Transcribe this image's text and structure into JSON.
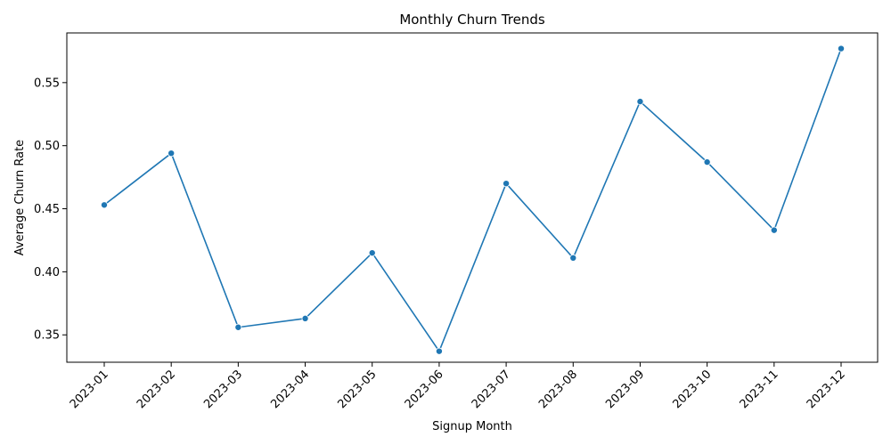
{
  "chart_data": {
    "type": "line",
    "title": "Monthly Churn Trends",
    "xlabel": "Signup Month",
    "ylabel": "Average Churn Rate",
    "categories": [
      "2023-01",
      "2023-02",
      "2023-03",
      "2023-04",
      "2023-05",
      "2023-06",
      "2023-07",
      "2023-08",
      "2023-09",
      "2023-10",
      "2023-11",
      "2023-12"
    ],
    "series": [
      {
        "values": [
          0.453,
          0.494,
          0.356,
          0.363,
          0.415,
          0.337,
          0.47,
          0.411,
          0.535,
          0.487,
          0.433,
          0.577
        ],
        "color": "#1f77b4"
      }
    ],
    "ylim": [
      0.3283,
      0.5894
    ],
    "yticks": [
      0.35,
      0.4,
      0.45,
      0.5,
      0.55
    ],
    "ytick_labels": [
      "0.35",
      "0.40",
      "0.45",
      "0.50",
      "0.55"
    ],
    "grid": false,
    "legend": false
  }
}
